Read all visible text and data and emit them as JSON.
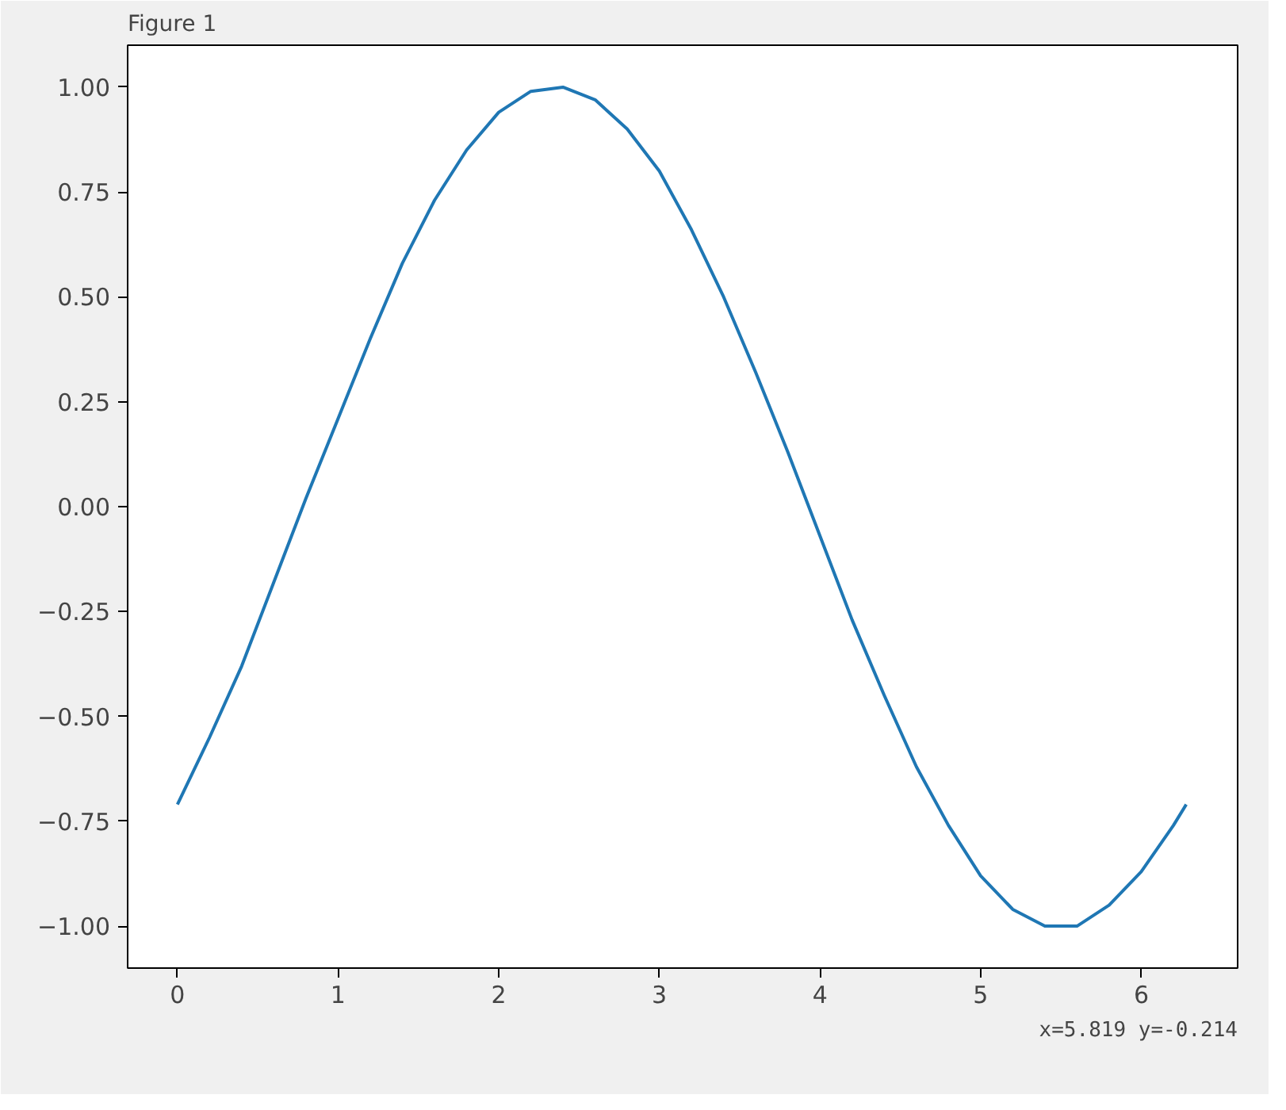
{
  "chart_data": {
    "type": "line",
    "title": "Figure 1",
    "x": [
      0,
      0.2,
      0.4,
      0.6,
      0.8,
      1.0,
      1.2,
      1.4,
      1.6,
      1.8,
      2.0,
      2.2,
      2.4,
      2.6,
      2.8,
      3.0,
      3.2,
      3.4,
      3.6,
      3.8,
      4.0,
      4.2,
      4.4,
      4.6,
      4.8,
      5.0,
      5.2,
      5.4,
      5.6,
      5.8,
      6.0,
      6.2,
      6.28
    ],
    "series": [
      {
        "color": "#1f77b4",
        "values": [
          -0.71,
          -0.55,
          -0.38,
          -0.18,
          0.02,
          0.21,
          0.4,
          0.58,
          0.73,
          0.85,
          0.94,
          0.99,
          1.0,
          0.97,
          0.9,
          0.8,
          0.66,
          0.5,
          0.32,
          0.13,
          -0.07,
          -0.27,
          -0.45,
          -0.62,
          -0.76,
          -0.88,
          -0.96,
          -1.0,
          -1.0,
          -0.95,
          -0.87,
          -0.76,
          -0.71
        ]
      }
    ],
    "xlim": [
      -0.31,
      6.6
    ],
    "ylim": [
      -1.1,
      1.1
    ],
    "xticks": [
      0,
      1,
      2,
      3,
      4,
      5,
      6
    ],
    "yticks": [
      {
        "value": -1,
        "label": "−1.00"
      },
      {
        "value": -0.75,
        "label": "−0.75"
      },
      {
        "value": -0.5,
        "label": "−0.50"
      },
      {
        "value": -0.25,
        "label": "−0.25"
      },
      {
        "value": 0,
        "label": "0.00"
      },
      {
        "value": 0.25,
        "label": "0.25"
      },
      {
        "value": 0.5,
        "label": "0.50"
      },
      {
        "value": 0.75,
        "label": "0.75"
      },
      {
        "value": 1,
        "label": "1.00"
      }
    ],
    "grid": false,
    "annotations": [
      "x=5.819 y=-0.214"
    ]
  }
}
